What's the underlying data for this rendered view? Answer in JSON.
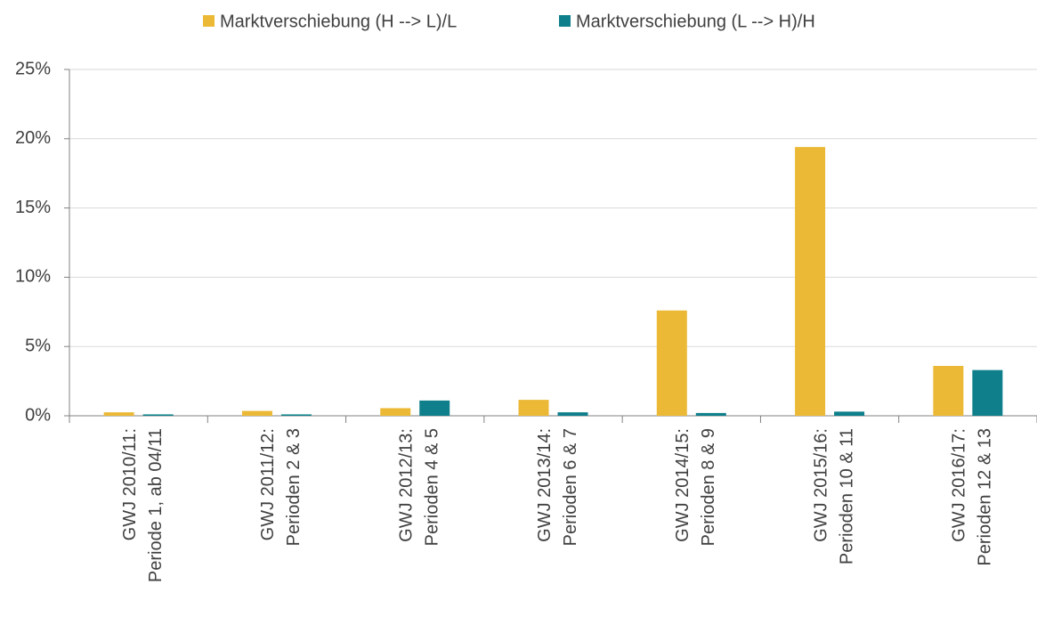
{
  "chart_data": {
    "type": "bar",
    "categories": [
      [
        "GWJ 2010/11:",
        "Periode 1, ab 04/11"
      ],
      [
        "GWJ 2011/12:",
        "Perioden 2 & 3"
      ],
      [
        "GWJ 2012/13:",
        "Perioden 4 & 5"
      ],
      [
        "GWJ 2013/14:",
        "Perioden 6 & 7"
      ],
      [
        "GWJ 2014/15:",
        "Perioden 8 & 9"
      ],
      [
        "GWJ 2015/16:",
        "Perioden 10 & 11"
      ],
      [
        "GWJ 2016/17:",
        "Perioden 12 & 13"
      ]
    ],
    "series": [
      {
        "name": "Marktverschiebung (H --> L)/L",
        "color": "#ebb935",
        "values": [
          0.25,
          0.35,
          0.55,
          1.15,
          7.6,
          19.4,
          3.6
        ]
      },
      {
        "name": "Marktverschiebung (L --> H)/H",
        "color": "#0e7f8b",
        "values": [
          0.1,
          0.1,
          1.1,
          0.25,
          0.2,
          0.3,
          3.3
        ]
      }
    ],
    "ylim": [
      0,
      25
    ],
    "yticks": [
      {
        "value": 0,
        "label": "0%"
      },
      {
        "value": 5,
        "label": "5%"
      },
      {
        "value": 10,
        "label": "10%"
      },
      {
        "value": 15,
        "label": "15%"
      },
      {
        "value": 20,
        "label": "20%"
      },
      {
        "value": 25,
        "label": "25%"
      }
    ],
    "grid": true,
    "legend": "top"
  }
}
